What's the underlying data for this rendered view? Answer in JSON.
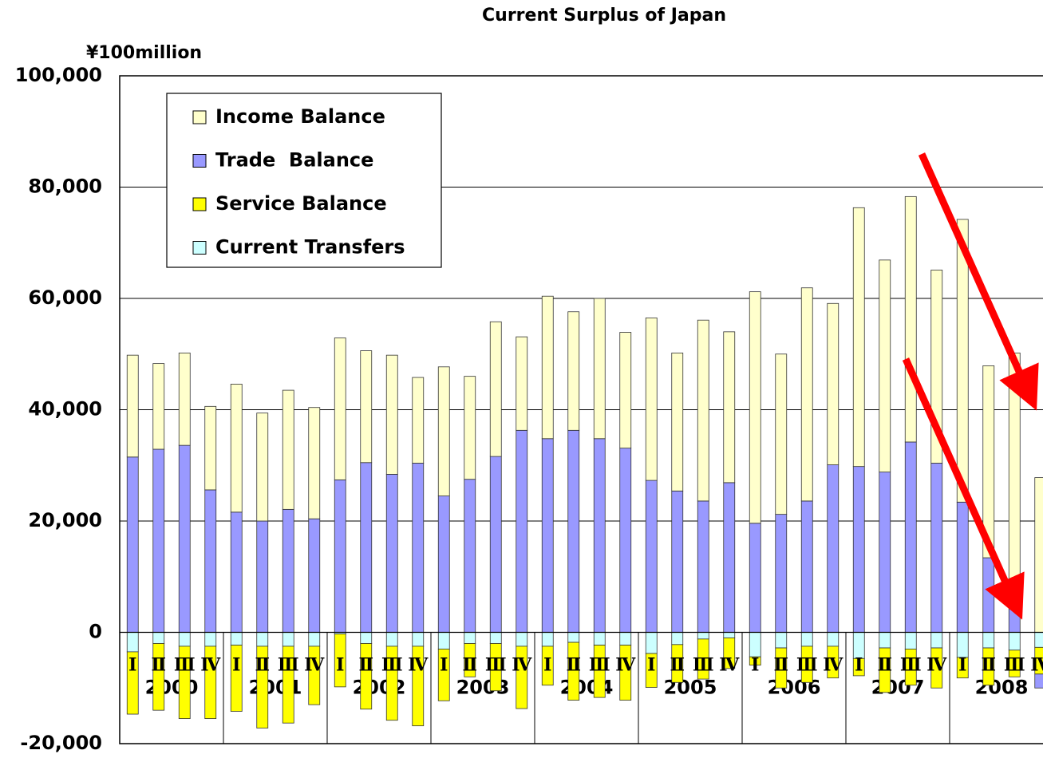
{
  "chart_data": {
    "type": "bar",
    "stacked": true,
    "title": "Current Surplus of Japan",
    "y_label": "¥100million",
    "categories": [
      "Ⅰ",
      "Ⅱ",
      "Ⅲ",
      "Ⅳ",
      "Ⅰ",
      "Ⅱ",
      "Ⅲ",
      "Ⅳ",
      "Ⅰ",
      "Ⅱ",
      "Ⅲ",
      "Ⅳ",
      "Ⅰ",
      "Ⅱ",
      "Ⅲ",
      "Ⅳ",
      "Ⅰ",
      "Ⅱ",
      "Ⅲ",
      "Ⅳ",
      "Ⅰ",
      "Ⅱ",
      "Ⅲ",
      "Ⅳ",
      "Ⅰ",
      "Ⅱ",
      "Ⅲ",
      "Ⅳ",
      "Ⅰ",
      "Ⅱ",
      "Ⅲ",
      "Ⅳ",
      "Ⅰ",
      "Ⅱ",
      "Ⅲ",
      "Ⅳ"
    ],
    "years": [
      "2000",
      "2001",
      "2002",
      "2003",
      "2004",
      "2005",
      "2006",
      "2007",
      "2008"
    ],
    "series": [
      {
        "name": "Income Balance",
        "color": "#ffffcc",
        "values": [
          18300,
          15400,
          16600,
          15000,
          23000,
          19400,
          21400,
          20000,
          25500,
          20100,
          21400,
          15400,
          23200,
          18500,
          24200,
          16800,
          25600,
          21300,
          25200,
          20800,
          29200,
          24800,
          32500,
          27100,
          41600,
          28800,
          38300,
          29000,
          46500,
          38100,
          44100,
          34700,
          50800,
          34500,
          45300,
          27800
        ]
      },
      {
        "name": "Trade  Balance",
        "color": "#9999ff",
        "values": [
          31500,
          32900,
          33600,
          25600,
          21600,
          20000,
          22100,
          20400,
          27400,
          30500,
          28400,
          30400,
          24500,
          27500,
          31600,
          36300,
          34800,
          36300,
          34800,
          33100,
          27300,
          25400,
          23600,
          26900,
          19600,
          21200,
          23600,
          30100,
          29800,
          28800,
          34200,
          30400,
          23400,
          13400,
          4900,
          -2500
        ]
      },
      {
        "name": "Service Balance",
        "color": "#ffff00",
        "values": [
          -11200,
          -12000,
          -13000,
          -13000,
          -11900,
          -14700,
          -13800,
          -10500,
          -9500,
          -11800,
          -13300,
          -14300,
          -9300,
          -6000,
          -8500,
          -11200,
          -7000,
          -10400,
          -9400,
          -9900,
          -6100,
          -6800,
          -7200,
          -5500,
          -1500,
          -7200,
          -6500,
          -5700,
          -3100,
          -8000,
          -6500,
          -7200,
          -3700,
          -6700,
          -4800,
          -4800
        ]
      },
      {
        "name": "Current Transfers",
        "color": "#ccffff",
        "values": [
          -3500,
          -2000,
          -2500,
          -2500,
          -2300,
          -2500,
          -2500,
          -2500,
          -300,
          -2000,
          -2500,
          -2500,
          -3000,
          -2000,
          -2000,
          -2500,
          -2500,
          -1800,
          -2300,
          -2300,
          -3800,
          -2200,
          -1200,
          -1000,
          -4400,
          -2800,
          -2500,
          -2500,
          -4700,
          -2800,
          -3000,
          -2800,
          -4500,
          -2800,
          -3200,
          -2700
        ]
      }
    ],
    "ylim": [
      -20000,
      100000
    ],
    "yticks": [
      {
        "value": -20000,
        "label": "-20,000"
      },
      0,
      {
        "value": 20000,
        "label": "20,000"
      },
      {
        "value": 40000,
        "label": "40,000"
      },
      {
        "value": 60000,
        "label": "60,000"
      },
      {
        "value": 80000,
        "label": "80,000"
      },
      {
        "value": 100000,
        "label": "100,000"
      }
    ],
    "grid": true,
    "legend": "upper left"
  }
}
